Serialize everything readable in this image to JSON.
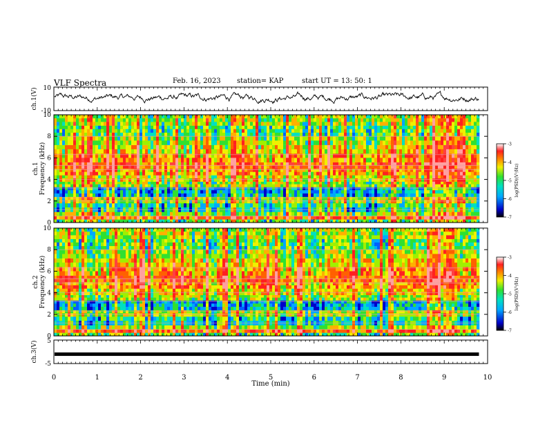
{
  "header": {
    "title": "VLF Spectra",
    "date": "Feb. 16, 2023",
    "station": "station= KAP",
    "start": "start  UT  =   13: 50: 1"
  },
  "chart_data": [
    {
      "type": "line",
      "panel": "ch1-waveform",
      "ylabel": "ch.1(V)",
      "ylim": [
        -10,
        10
      ],
      "yticks": [
        "10",
        "-10"
      ],
      "xlim": [
        0,
        10
      ],
      "x_unit": "min",
      "description_values": "noisy waveform fluctuating roughly between -4 and 6 V"
    },
    {
      "type": "heatmap",
      "panel": "ch1-spectrogram",
      "ylabel": "ch.1",
      "ylabel2": "Frequency  (kHz)",
      "ylim": [
        0,
        10
      ],
      "yticks": [
        "0",
        "2",
        "4",
        "6",
        "8",
        "10"
      ],
      "xlim": [
        0,
        9.8
      ],
      "colorbar": {
        "label": "log(PSD)(V²/Hz)",
        "range": [
          -7,
          -3
        ],
        "ticks": [
          "-3",
          "-4",
          "-5",
          "-6",
          "-7"
        ]
      }
    },
    {
      "type": "heatmap",
      "panel": "ch2-spectrogram",
      "ylabel": "ch.2",
      "ylabel2": "Frequency  (kHz)",
      "ylim": [
        0,
        10
      ],
      "yticks": [
        "0",
        "2",
        "4",
        "6",
        "8",
        "10"
      ],
      "xlim": [
        0,
        9.8
      ],
      "colorbar": {
        "label": "log(PSD)(V²/Hz)",
        "range": [
          -7,
          -3
        ],
        "ticks": [
          "-3",
          "-4",
          "-5",
          "-6",
          "-7"
        ]
      }
    },
    {
      "type": "line",
      "panel": "ch3-waveform",
      "ylabel": "ch.3(V)",
      "ylim": [
        -5,
        5
      ],
      "yticks": [
        "5",
        "-5"
      ],
      "value": -1,
      "xlim": [
        0,
        10
      ],
      "xlabel": "Time  (min)",
      "xticks": [
        "0",
        "1",
        "2",
        "3",
        "4",
        "5",
        "6",
        "7",
        "8",
        "9",
        "10"
      ]
    }
  ]
}
